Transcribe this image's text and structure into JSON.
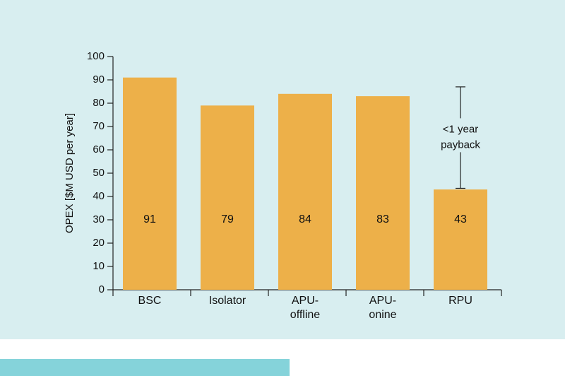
{
  "colors": {
    "panel_background": "#d8eef0",
    "bar": "#edb049",
    "axis": "#222222",
    "text": "#111111",
    "bottom_strip": "#85d3da"
  },
  "chart_data": {
    "type": "bar",
    "categories": [
      [
        "BSC"
      ],
      [
        "Isolator"
      ],
      [
        "APU-",
        "offline"
      ],
      [
        "APU-",
        "onine"
      ],
      [
        "RPU"
      ]
    ],
    "values": [
      91,
      79,
      84,
      83,
      43
    ],
    "value_labels": [
      "91",
      "79",
      "84",
      "83",
      "43"
    ],
    "ylabel": "OPEX [$M USD per year]",
    "ylim": [
      0,
      100
    ],
    "yticks": [
      0,
      10,
      20,
      30,
      40,
      50,
      60,
      70,
      80,
      90,
      100
    ],
    "grid": false,
    "annotation": {
      "category_index": 4,
      "range": [
        43.5,
        87
      ],
      "text": [
        "<1 year",
        "payback"
      ]
    }
  }
}
